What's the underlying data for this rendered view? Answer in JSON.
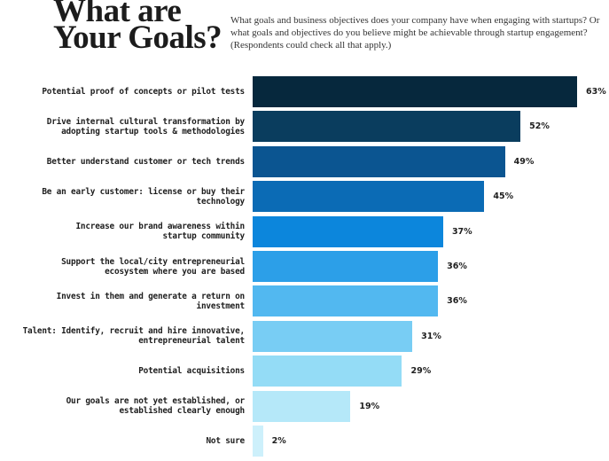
{
  "header": {
    "title_line1": "What are",
    "title_line2": "Your Goals?",
    "subtitle": "What goals and business objectives does your company have when engaging with startups? Or what goals and objectives do you believe might be achievable through startup engagement? (Respondents could check all that apply.)"
  },
  "chart_data": {
    "type": "bar",
    "orientation": "horizontal",
    "title": "What are Your Goals?",
    "subtitle": "What goals and business objectives does your company have when engaging with startups? Or what goals and objectives do you believe might be achievable through startup engagement? (Respondents could check all that apply.)",
    "xlabel": "",
    "ylabel": "",
    "xlim": [
      0,
      63
    ],
    "grid": false,
    "legend": null,
    "unit": "%",
    "categories": [
      "Potential proof of concepts or pilot tests",
      "Drive internal cultural transformation by adopting startup tools & methodologies",
      "Better understand customer or tech trends",
      "Be an early customer: license or buy their technology",
      "Increase our brand awareness within startup community",
      "Support the local/city entrepreneurial ecosystem where you are based",
      "Invest in them and generate a return on investment",
      "Talent: Identify, recruit and hire innovative, entrepreneurial talent",
      "Potential acquisitions",
      "Our goals are not yet established, or established clearly enough",
      "Not sure"
    ],
    "values": [
      63,
      52,
      49,
      45,
      37,
      36,
      36,
      31,
      29,
      19,
      2
    ],
    "value_labels": [
      "63%",
      "52%",
      "49%",
      "45%",
      "37%",
      "36%",
      "36%",
      "31%",
      "29%",
      "19%",
      "2%"
    ],
    "colors": [
      "#06283d",
      "#0a3d5e",
      "#0b5591",
      "#0b6bb5",
      "#0c86dc",
      "#2c9fe8",
      "#52b8f0",
      "#78cdf4",
      "#94dcf6",
      "#b5e8f9",
      "#cdf0fb"
    ]
  },
  "bars": [
    {
      "label_line1": "Potential proof of concepts or pilot tests",
      "label_line2": "",
      "value": 63,
      "value_label": "63%",
      "color": "#06283d"
    },
    {
      "label_line1": "Drive internal cultural transformation by",
      "label_line2": "adopting startup tools & methodologies",
      "value": 52,
      "value_label": "52%",
      "color": "#0a3d5e"
    },
    {
      "label_line1": "Better understand customer or tech trends",
      "label_line2": "",
      "value": 49,
      "value_label": "49%",
      "color": "#0b5591"
    },
    {
      "label_line1": "Be an early customer: license or buy their",
      "label_line2": "technology",
      "value": 45,
      "value_label": "45%",
      "color": "#0b6bb5"
    },
    {
      "label_line1": "Increase our brand awareness within",
      "label_line2": "startup community",
      "value": 37,
      "value_label": "37%",
      "color": "#0c86dc"
    },
    {
      "label_line1": "Support the local/city entrepreneurial",
      "label_line2": "ecosystem where you are based",
      "value": 36,
      "value_label": "36%",
      "color": "#2c9fe8"
    },
    {
      "label_line1": "Invest in them and generate a return on",
      "label_line2": "investment",
      "value": 36,
      "value_label": "36%",
      "color": "#52b8f0"
    },
    {
      "label_line1": "Talent: Identify, recruit and hire innovative,",
      "label_line2": "entrepreneurial talent",
      "value": 31,
      "value_label": "31%",
      "color": "#78cdf4"
    },
    {
      "label_line1": "Potential acquisitions",
      "label_line2": "",
      "value": 29,
      "value_label": "29%",
      "color": "#94dcf6"
    },
    {
      "label_line1": "Our goals are not yet established, or",
      "label_line2": "established clearly enough",
      "value": 19,
      "value_label": "19%",
      "color": "#b5e8f9"
    },
    {
      "label_line1": "Not sure",
      "label_line2": "",
      "value": 2,
      "value_label": "2%",
      "color": "#cdf0fb"
    }
  ]
}
